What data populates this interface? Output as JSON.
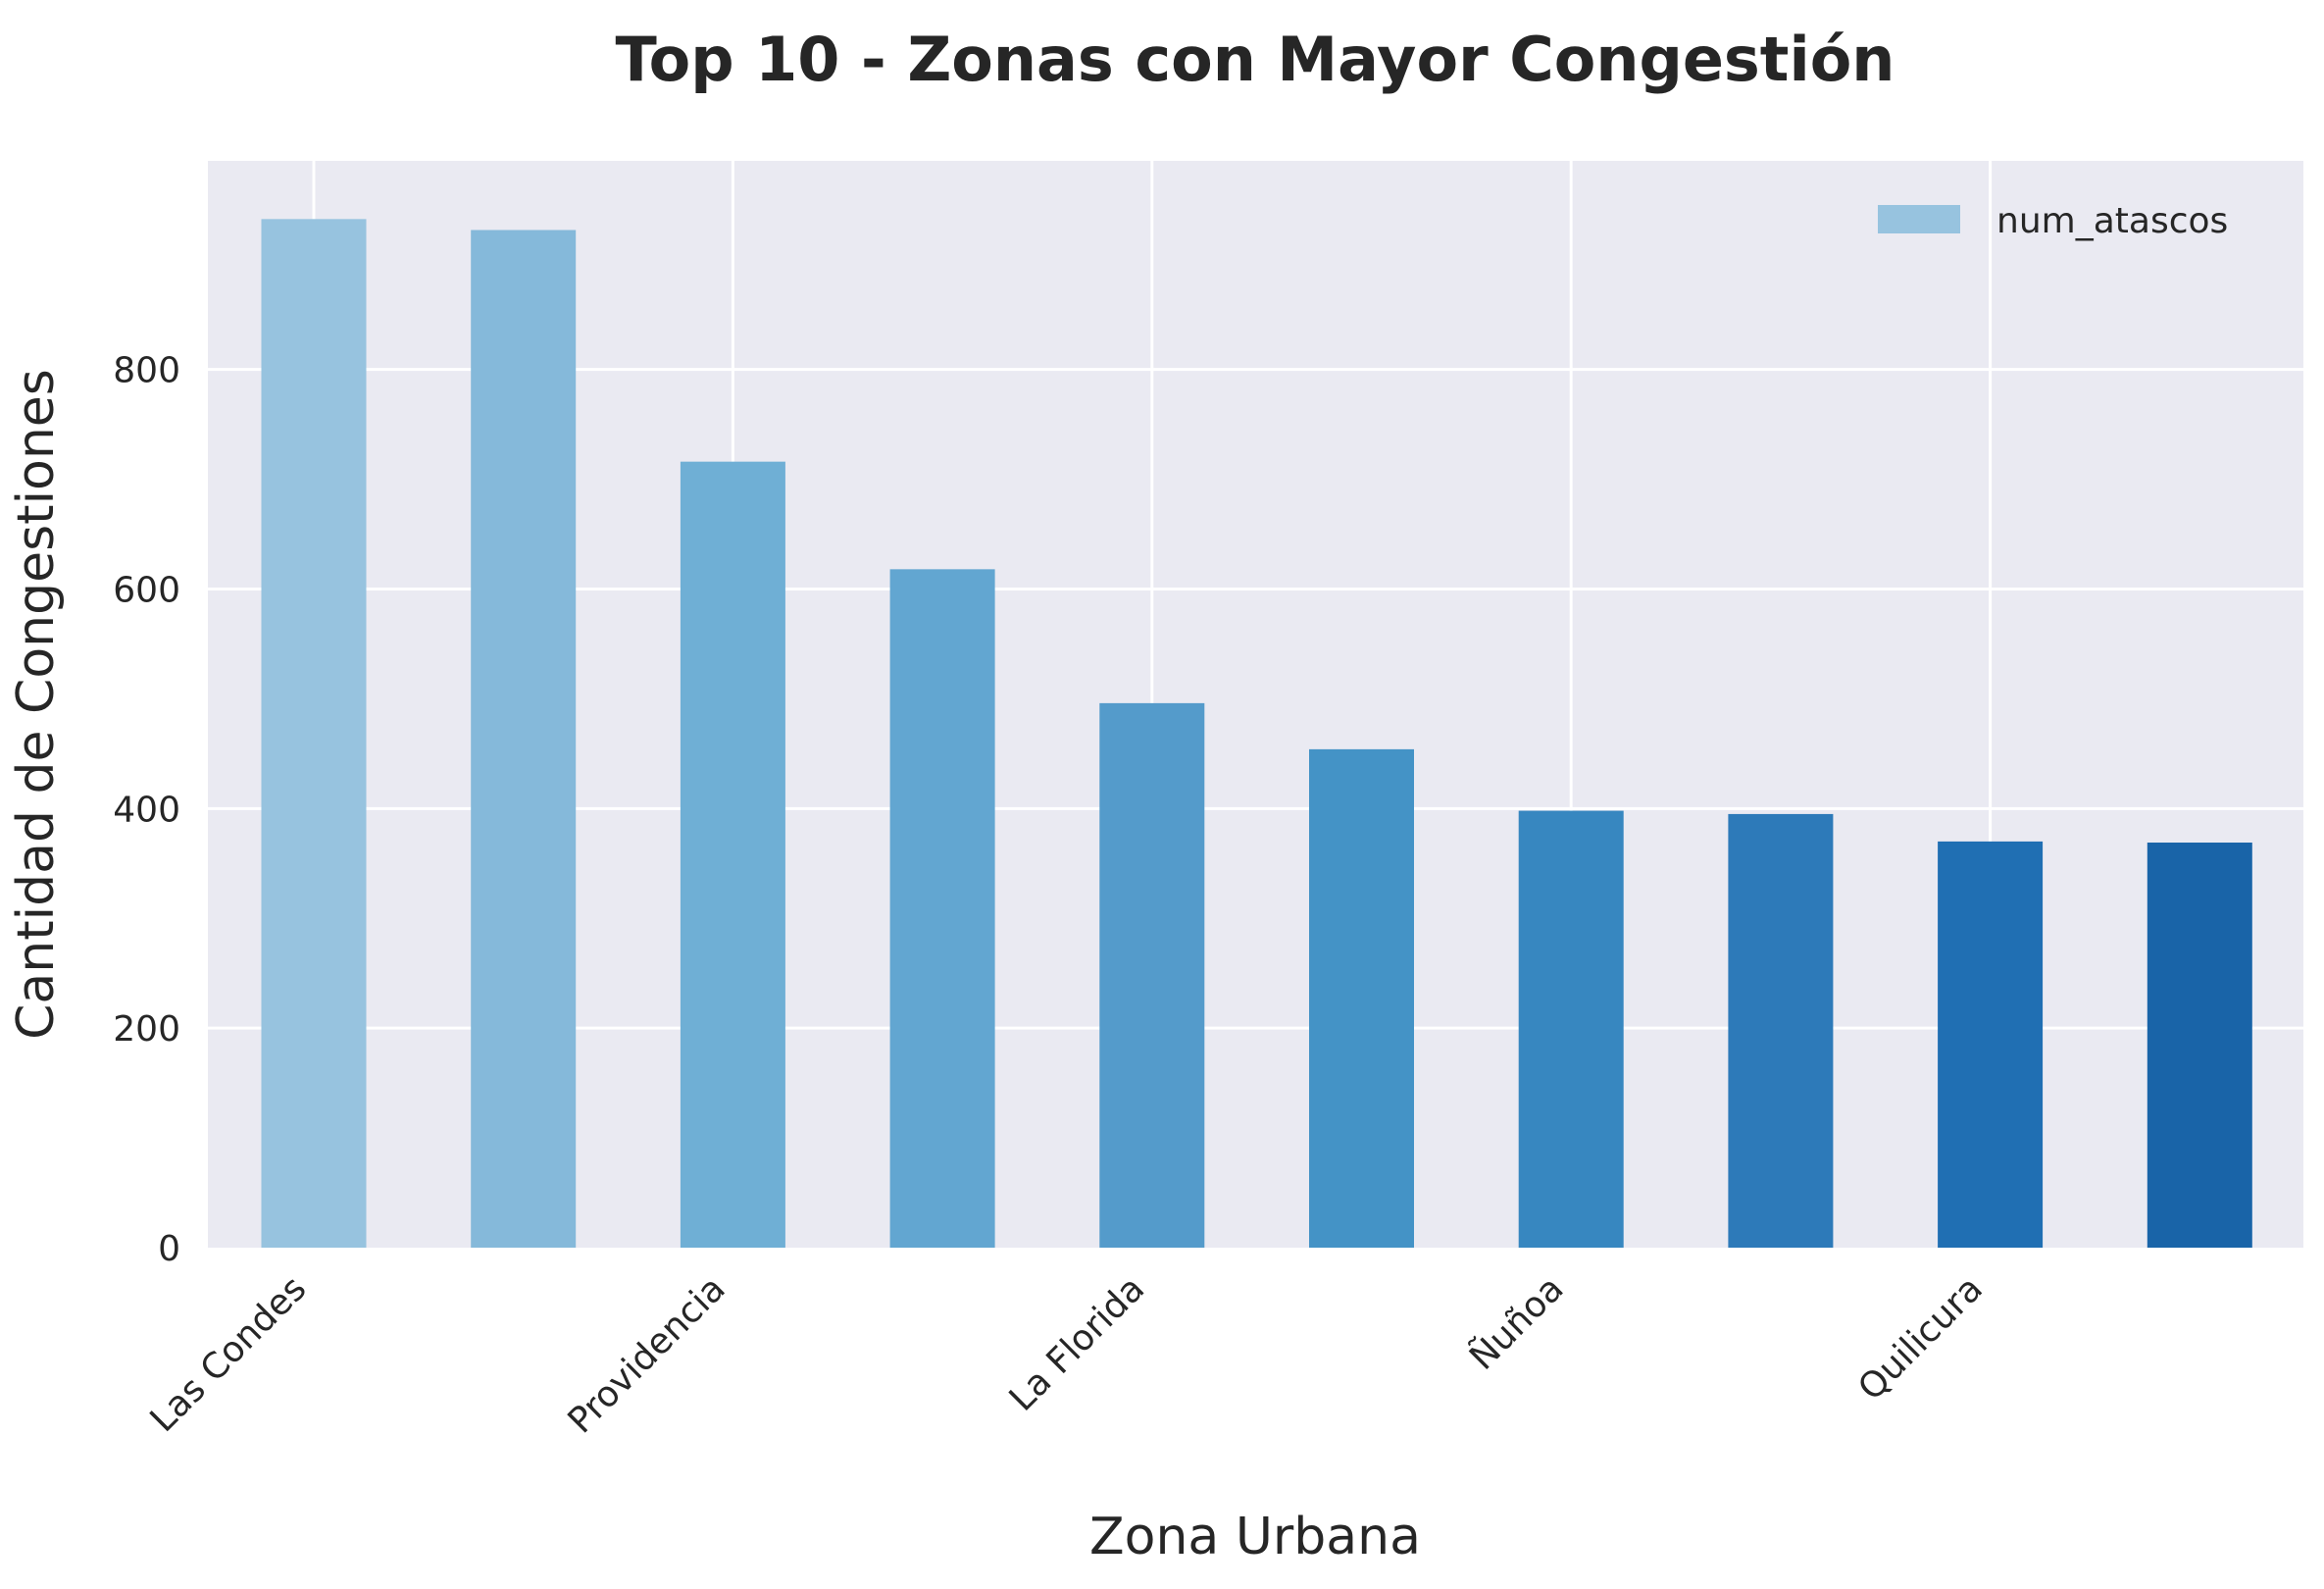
{
  "chart_data": {
    "type": "bar",
    "title": "Top 10 - Zonas con Mayor Congestión",
    "xlabel": "Zona Urbana",
    "ylabel": "Cantidad de Congestiones",
    "categories": [
      "Las Condes",
      "",
      "Providencia",
      "",
      "La Florida",
      "",
      "Ñuñoa",
      "",
      "Quilicura",
      ""
    ],
    "series": [
      {
        "name": "num_atascos",
        "values": [
          937,
          927,
          716,
          618,
          496,
          454,
          398,
          395,
          370,
          369
        ]
      }
    ],
    "bar_colors": [
      "#97c3df",
      "#85b9da",
      "#6fafd5",
      "#62a6d1",
      "#549bcb",
      "#4493c6",
      "#3787c0",
      "#2d7ab9",
      "#206fb3",
      "#1964a8"
    ],
    "ylim": [
      0,
      990
    ],
    "yticks": [
      0,
      200,
      400,
      600,
      800
    ],
    "grid": true,
    "legend_position": "top-right",
    "style": {
      "plot_background": "#eaeaf2",
      "grid_color": "#ffffff"
    }
  }
}
